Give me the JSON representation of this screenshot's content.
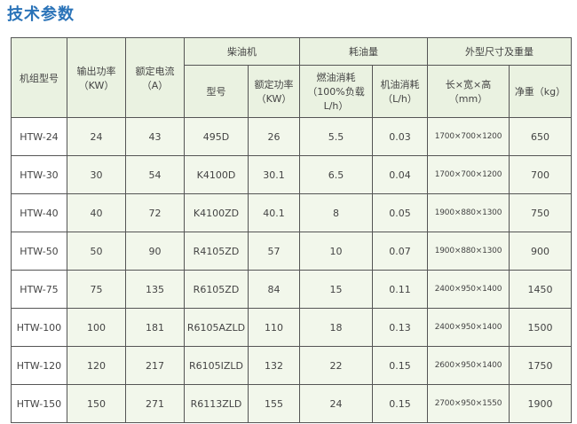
{
  "title": "技术参数",
  "headers": {
    "model": "机组型号",
    "output_power": "输出功率\n（KW）",
    "rated_current": "额定电流\n（A）",
    "diesel_engine": "柴油机",
    "engine_model": "型号",
    "engine_power": "额定功率\n（KW）",
    "fuel_consumption_group": "耗油量",
    "fuel_consumption": "燃油消耗\n（100%负载L/h）",
    "oil_consumption": "机油消耗\n（L/h）",
    "dimensions_group": "外型尺寸及重量",
    "dimensions": "长×宽×高\n（mm）",
    "net_weight": "净重（kg）"
  },
  "rows": [
    {
      "model": "HTW-24",
      "output": "24",
      "current": "43",
      "engine": "495D",
      "engine_power": "26",
      "fuel": "5.5",
      "oil": "0.03",
      "dims": "1700×700×1200",
      "weight": "650"
    },
    {
      "model": "HTW-30",
      "output": "30",
      "current": "54",
      "engine": "K4100D",
      "engine_power": "30.1",
      "fuel": "6.5",
      "oil": "0.04",
      "dims": "1700×700×1200",
      "weight": "700"
    },
    {
      "model": "HTW-40",
      "output": "40",
      "current": "72",
      "engine": "K4100ZD",
      "engine_power": "40.1",
      "fuel": "8",
      "oil": "0.05",
      "dims": "1900×880×1300",
      "weight": "750"
    },
    {
      "model": "HTW-50",
      "output": "50",
      "current": "90",
      "engine": "R4105ZD",
      "engine_power": "57",
      "fuel": "10",
      "oil": "0.07",
      "dims": "1900×880×1300",
      "weight": "900"
    },
    {
      "model": "HTW-75",
      "output": "75",
      "current": "135",
      "engine": "R6105ZD",
      "engine_power": "84",
      "fuel": "15",
      "oil": "0.11",
      "dims": "2400×950×1400",
      "weight": "1450"
    },
    {
      "model": "HTW-100",
      "output": "100",
      "current": "181",
      "engine": "R6105AZLD",
      "engine_power": "110",
      "fuel": "18",
      "oil": "0.13",
      "dims": "2400×950×1400",
      "weight": "1500"
    },
    {
      "model": "HTW-120",
      "output": "120",
      "current": "217",
      "engine": "R6105IZLD",
      "engine_power": "132",
      "fuel": "22",
      "oil": "0.15",
      "dims": "2600×950×1400",
      "weight": "1750"
    },
    {
      "model": "HTW-150",
      "output": "150",
      "current": "271",
      "engine": "R6113ZLD",
      "engine_power": "155",
      "fuel": "24",
      "oil": "0.15",
      "dims": "2700×950×1550",
      "weight": "1900"
    }
  ],
  "colors": {
    "title": "#2a73b8",
    "header_bg": "#eaf2e1",
    "cell_bg": "#f2f7eb",
    "border": "#555555"
  }
}
